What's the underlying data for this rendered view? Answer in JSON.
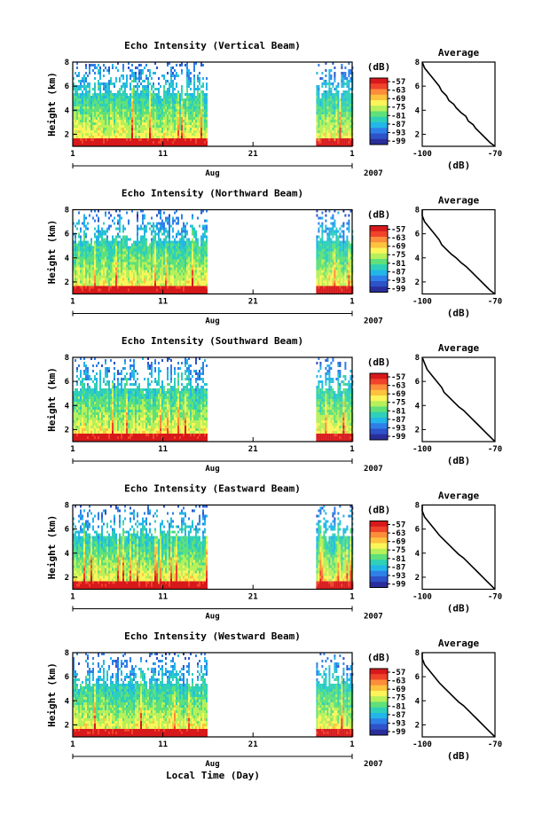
{
  "figure": {
    "x_axis_label": "Local Time (Day)"
  },
  "shared": {
    "month_label": "Aug",
    "year_label": "2007",
    "unit_label": "(dB)",
    "avg_title": "Average",
    "ylabel": "Height (km)",
    "colorbar_ticks": [
      "-57",
      "-63",
      "-69",
      "-75",
      "-81",
      "-87",
      "-93",
      "-99"
    ],
    "colorbar_colors": [
      "#d7191c",
      "#f0432a",
      "#fc8d3b",
      "#fdc23e",
      "#fbf55a",
      "#b6f05a",
      "#5fe07a",
      "#2fd0b8",
      "#23b6e8",
      "#2f7fe8",
      "#2e52c8",
      "#2a2e9a"
    ]
  },
  "panels": [
    {
      "title": "Echo Intensity (Vertical Beam)",
      "chart_data": {
        "type": "heatmap",
        "title": "Echo Intensity (Vertical Beam)",
        "xlabel": "Aug",
        "ylabel": "Height (km)",
        "x_ticks": [
          "1",
          "11",
          "21",
          "1"
        ],
        "y_ticks": [
          "2",
          "4",
          "6",
          "8"
        ],
        "xlim": [
          1,
          32
        ],
        "ylim": [
          1,
          8
        ],
        "data_segments_days": [
          [
            1,
            15.8
          ],
          [
            28,
            32
          ]
        ],
        "colorbar_label": "(dB)",
        "colorbar_ticks": [
          -57,
          -63,
          -69,
          -75,
          -81,
          -87,
          -93,
          -99
        ]
      },
      "avg_data": {
        "type": "line",
        "title": "Average",
        "xlabel": "(dB)",
        "x_ticks": [
          "-100",
          "-70"
        ],
        "y_ticks": [
          "2",
          "4",
          "6",
          "8"
        ],
        "xlim": [
          -100,
          -70
        ],
        "ylim": [
          1,
          8
        ],
        "x": [
          -100,
          -99,
          -97,
          -95,
          -93,
          -92,
          -90,
          -89,
          -87,
          -86,
          -84,
          -82,
          -81,
          -79,
          -78,
          -76,
          -74,
          -72,
          -70
        ],
        "y": [
          8.0,
          7.5,
          7.0,
          6.5,
          6.0,
          5.6,
          5.2,
          4.8,
          4.5,
          4.2,
          3.8,
          3.5,
          3.1,
          2.8,
          2.5,
          2.1,
          1.7,
          1.3,
          1.0
        ]
      }
    },
    {
      "title": "Echo Intensity (Northward Beam)",
      "chart_data": {
        "type": "heatmap",
        "title": "Echo Intensity (Northward Beam)",
        "xlabel": "Aug",
        "ylabel": "Height (km)",
        "x_ticks": [
          "1",
          "11",
          "21",
          "1"
        ],
        "y_ticks": [
          "2",
          "4",
          "6",
          "8"
        ],
        "xlim": [
          1,
          32
        ],
        "ylim": [
          1,
          8
        ],
        "data_segments_days": [
          [
            1,
            15.8
          ],
          [
            28,
            32
          ]
        ],
        "colorbar_label": "(dB)",
        "colorbar_ticks": [
          -57,
          -63,
          -69,
          -75,
          -81,
          -87,
          -93,
          -99
        ]
      },
      "avg_data": {
        "type": "line",
        "title": "Average",
        "xlabel": "(dB)",
        "x_ticks": [
          "-100",
          "-70"
        ],
        "y_ticks": [
          "2",
          "4",
          "6",
          "8"
        ],
        "xlim": [
          -100,
          -70
        ],
        "ylim": [
          1,
          8
        ],
        "x": [
          -101,
          -100,
          -99,
          -97,
          -95,
          -93,
          -92,
          -90,
          -88,
          -86,
          -84,
          -82,
          -80,
          -78,
          -76,
          -74,
          -72,
          -70
        ],
        "y": [
          8.0,
          7.5,
          7.0,
          6.5,
          6.0,
          5.5,
          5.1,
          4.7,
          4.3,
          4.0,
          3.6,
          3.3,
          2.9,
          2.5,
          2.1,
          1.7,
          1.3,
          1.0
        ]
      }
    },
    {
      "title": "Echo Intensity (Southward Beam)",
      "chart_data": {
        "type": "heatmap",
        "title": "Echo Intensity (Southward Beam)",
        "xlabel": "Aug",
        "ylabel": "Height (km)",
        "x_ticks": [
          "1",
          "11",
          "21",
          "1"
        ],
        "y_ticks": [
          "2",
          "4",
          "6",
          "8"
        ],
        "xlim": [
          1,
          32
        ],
        "ylim": [
          1,
          8
        ],
        "data_segments_days": [
          [
            1,
            15.8
          ],
          [
            28,
            32
          ]
        ],
        "colorbar_label": "(dB)",
        "colorbar_ticks": [
          -57,
          -63,
          -69,
          -75,
          -81,
          -87,
          -93,
          -99
        ]
      },
      "avg_data": {
        "type": "line",
        "title": "Average",
        "xlabel": "(dB)",
        "x_ticks": [
          "-100",
          "-70"
        ],
        "y_ticks": [
          "2",
          "4",
          "6",
          "8"
        ],
        "xlim": [
          -100,
          -70
        ],
        "ylim": [
          1,
          8
        ],
        "x": [
          -100,
          -99,
          -98,
          -96,
          -94,
          -92,
          -91,
          -89,
          -87,
          -85,
          -83,
          -81,
          -79,
          -77,
          -75,
          -73,
          -71,
          -70
        ],
        "y": [
          8.0,
          7.5,
          7.0,
          6.5,
          6.0,
          5.5,
          5.1,
          4.7,
          4.3,
          3.9,
          3.6,
          3.2,
          2.8,
          2.4,
          2.0,
          1.6,
          1.2,
          1.0
        ]
      }
    },
    {
      "title": "Echo Intensity (Eastward Beam)",
      "chart_data": {
        "type": "heatmap",
        "title": "Echo Intensity (Eastward Beam)",
        "xlabel": "Aug",
        "ylabel": "Height (km)",
        "x_ticks": [
          "1",
          "11",
          "21",
          "1"
        ],
        "y_ticks": [
          "2",
          "4",
          "6",
          "8"
        ],
        "xlim": [
          1,
          32
        ],
        "ylim": [
          1,
          8
        ],
        "data_segments_days": [
          [
            1,
            15.8
          ],
          [
            28,
            32
          ]
        ],
        "colorbar_label": "(dB)",
        "colorbar_ticks": [
          -57,
          -63,
          -69,
          -75,
          -81,
          -87,
          -93,
          -99
        ]
      },
      "avg_data": {
        "type": "line",
        "title": "Average",
        "xlabel": "(dB)",
        "x_ticks": [
          "-100",
          "-70"
        ],
        "y_ticks": [
          "2",
          "4",
          "6",
          "8"
        ],
        "xlim": [
          -100,
          -70
        ],
        "ylim": [
          1,
          8
        ],
        "x": [
          -101,
          -100,
          -99,
          -97,
          -95,
          -93,
          -91,
          -89,
          -87,
          -85,
          -83,
          -81,
          -79,
          -77,
          -75,
          -73,
          -71,
          -70
        ],
        "y": [
          8.0,
          7.5,
          7.0,
          6.5,
          6.0,
          5.5,
          5.1,
          4.7,
          4.3,
          3.9,
          3.6,
          3.2,
          2.8,
          2.4,
          2.0,
          1.6,
          1.2,
          1.0
        ]
      }
    },
    {
      "title": "Echo Intensity (Westward Beam)",
      "chart_data": {
        "type": "heatmap",
        "title": "Echo Intensity (Westward Beam)",
        "xlabel": "Aug",
        "ylabel": "Height (km)",
        "x_ticks": [
          "1",
          "11",
          "21",
          "1"
        ],
        "y_ticks": [
          "2",
          "4",
          "6",
          "8"
        ],
        "xlim": [
          1,
          32
        ],
        "ylim": [
          1,
          8
        ],
        "data_segments_days": [
          [
            1,
            15.8
          ],
          [
            28,
            32
          ]
        ],
        "colorbar_label": "(dB)",
        "colorbar_ticks": [
          -57,
          -63,
          -69,
          -75,
          -81,
          -87,
          -93,
          -99
        ]
      },
      "avg_data": {
        "type": "line",
        "title": "Average",
        "xlabel": "(dB)",
        "x_ticks": [
          "-100",
          "-70"
        ],
        "y_ticks": [
          "2",
          "4",
          "6",
          "8"
        ],
        "xlim": [
          -100,
          -70
        ],
        "ylim": [
          1,
          8
        ],
        "x": [
          -101,
          -100,
          -99,
          -97,
          -95,
          -93,
          -91,
          -89,
          -87,
          -85,
          -83,
          -81,
          -79,
          -77,
          -75,
          -73,
          -71,
          -70
        ],
        "y": [
          8.0,
          7.5,
          7.0,
          6.5,
          6.0,
          5.5,
          5.1,
          4.7,
          4.3,
          3.9,
          3.6,
          3.2,
          2.8,
          2.4,
          2.0,
          1.6,
          1.2,
          1.0
        ]
      }
    }
  ]
}
